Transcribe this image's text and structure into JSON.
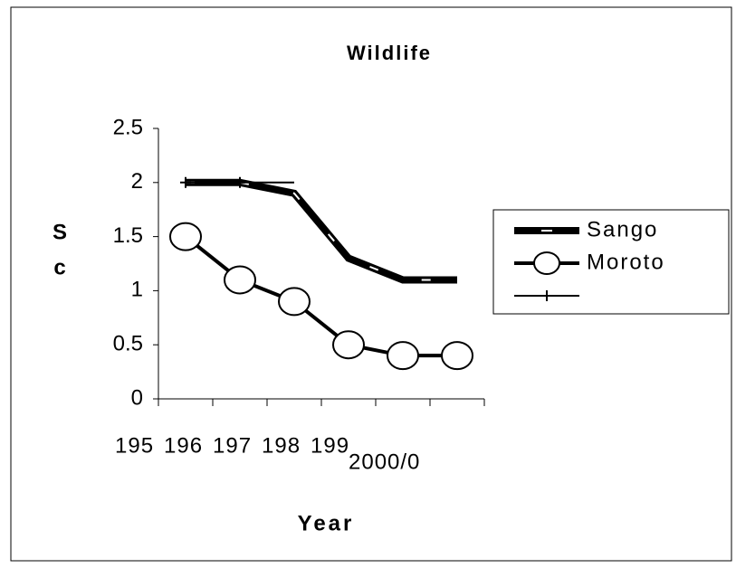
{
  "chart_data": {
    "type": "line",
    "title": "Wildlife",
    "x_label": "Year",
    "y_label_lines": [
      "S",
      "c"
    ],
    "categories": [
      "195",
      "196",
      "197",
      "198",
      "199",
      "2000/0"
    ],
    "series": [
      {
        "name": "Sango",
        "color": "#000000",
        "marker": "dash",
        "values": [
          2,
          2,
          1.9,
          1.3,
          1.1,
          1.1
        ]
      },
      {
        "name": "Moroto",
        "color": "#000000",
        "marker": "circle",
        "values": [
          1.5,
          1.1,
          0.9,
          0.5,
          0.4,
          0.4
        ]
      },
      {
        "color": "#000000",
        "marker": "plus",
        "values": [
          2,
          2,
          2,
          null,
          null,
          null
        ]
      }
    ],
    "ylim": [
      0,
      2.5
    ],
    "yticks": [
      0,
      0.5,
      1,
      1.5,
      2,
      2.5
    ],
    "legend": "right"
  }
}
